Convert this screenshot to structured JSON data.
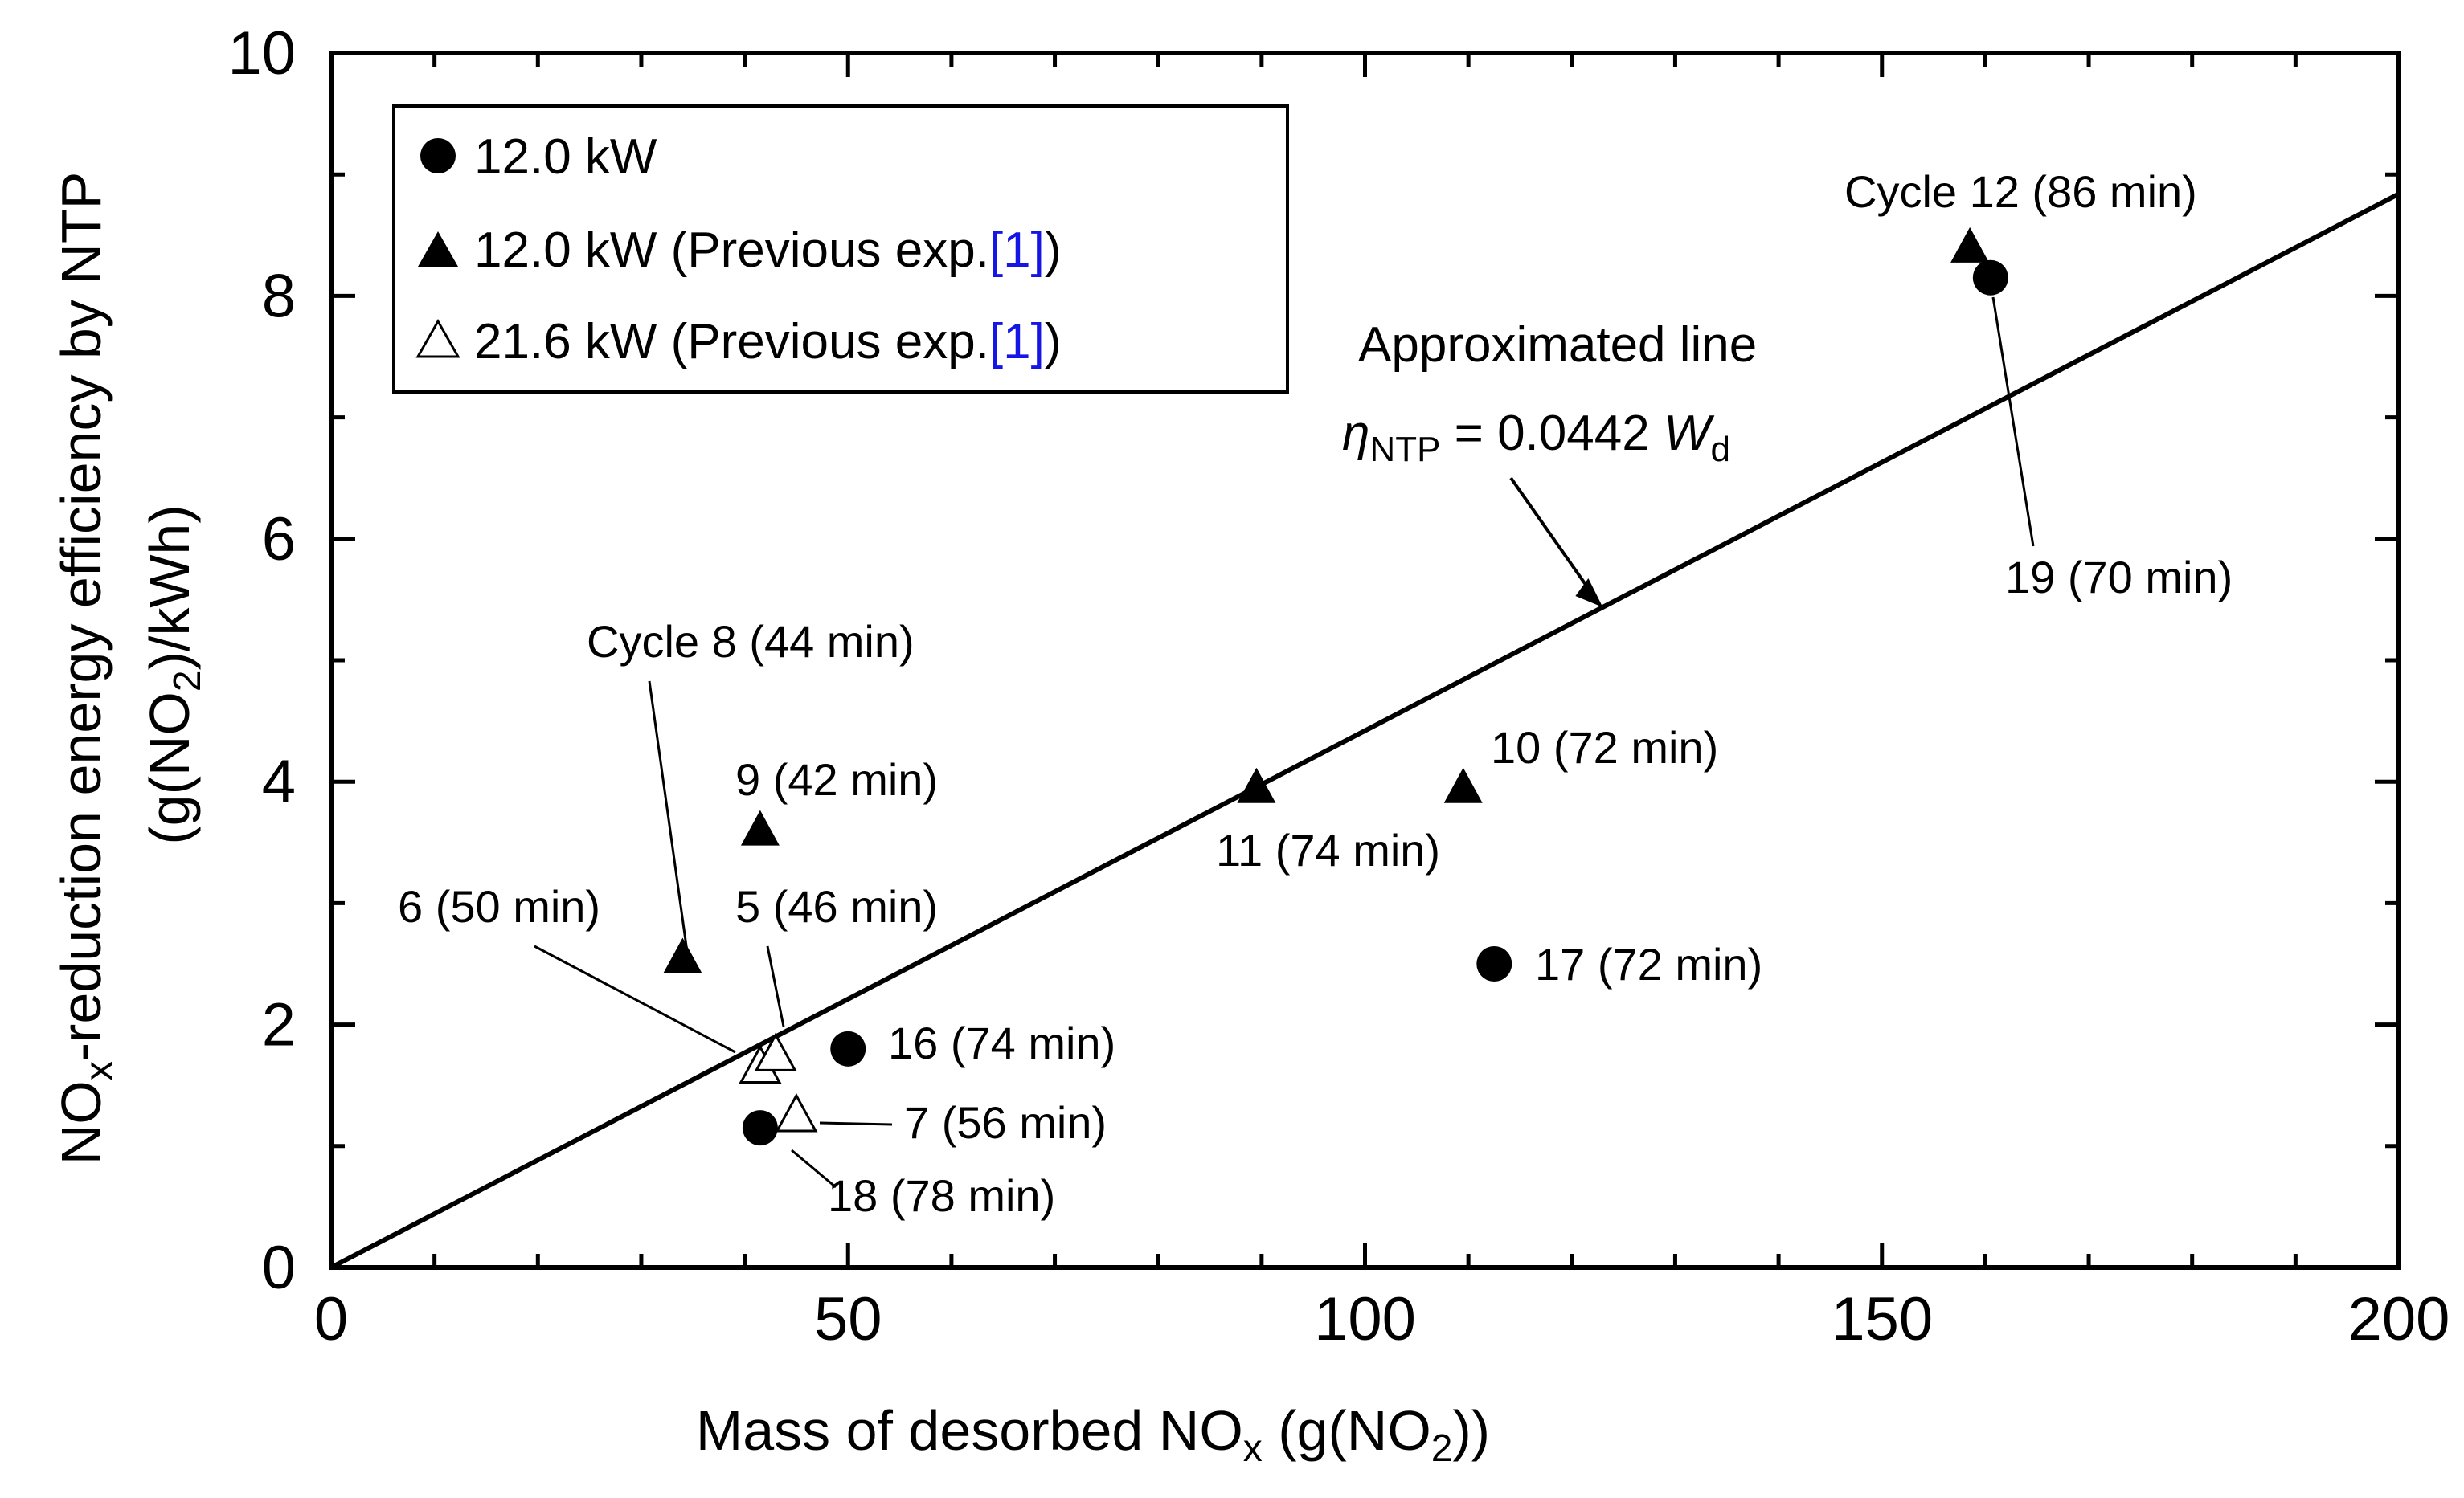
{
  "chart_data": {
    "type": "scatter",
    "xlim": [
      0,
      200
    ],
    "ylim": [
      0,
      10
    ],
    "x_major_ticks": [
      0,
      50,
      100,
      150,
      200
    ],
    "x_minor_step": 10,
    "y_major_ticks": [
      0,
      2,
      4,
      6,
      8,
      10
    ],
    "y_minor_step": 1,
    "x_tick_labels": [
      "0",
      "50",
      "100",
      "150",
      "200"
    ],
    "y_tick_labels": [
      "0",
      "2",
      "4",
      "6",
      "8",
      "10"
    ],
    "xlabel": {
      "main": "Mass of desorbed NO",
      "sub1": "x",
      "mid": " (g(NO",
      "sub2": "2",
      "end": "))"
    },
    "ylabel": {
      "line1": {
        "main": "NO",
        "sub": "x",
        "rest": "-reduction energy efficiency by NTP"
      },
      "line2": {
        "main": "(g(NO",
        "sub": "2",
        "rest": ")/kWh)"
      }
    },
    "legend": {
      "position": "top-left",
      "entries": [
        {
          "marker": "filled-circle",
          "label": "12.0 kW",
          "ref": ""
        },
        {
          "marker": "filled-triangle",
          "label": "12.0 kW (Previous exp.",
          "ref": "[1]",
          "suffix": ")"
        },
        {
          "marker": "open-triangle",
          "label": "21.6 kW (Previous exp.",
          "ref": "[1]",
          "suffix": ")"
        }
      ]
    },
    "series": [
      {
        "name": "12.0 kW",
        "marker": "filled-circle",
        "points": [
          {
            "x": 160.5,
            "y": 8.15,
            "cycle": 19
          },
          {
            "x": 50.0,
            "y": 1.8,
            "cycle": 16
          },
          {
            "x": 41.5,
            "y": 1.15,
            "cycle": 18
          },
          {
            "x": 112.5,
            "y": 2.5,
            "cycle": 17
          }
        ]
      },
      {
        "name": "12.0 kW (Previous exp.[1])",
        "marker": "filled-triangle",
        "points": [
          {
            "x": 158.5,
            "y": 8.4,
            "cycle": 12
          },
          {
            "x": 34.0,
            "y": 2.55,
            "cycle": 8
          },
          {
            "x": 41.5,
            "y": 3.6,
            "cycle": 9
          },
          {
            "x": 89.5,
            "y": 3.95,
            "cycle": 11
          },
          {
            "x": 109.5,
            "y": 3.95,
            "cycle": 10
          }
        ]
      },
      {
        "name": "21.6 kW (Previous exp.[1])",
        "marker": "open-triangle",
        "points": [
          {
            "x": 41.5,
            "y": 1.65,
            "cycle": 6
          },
          {
            "x": 43.0,
            "y": 1.75,
            "cycle": 5
          },
          {
            "x": 45.0,
            "y": 1.25,
            "cycle": 7
          }
        ]
      }
    ],
    "fit_line": {
      "slope": 0.0442,
      "intercept": 0,
      "x_range": [
        0,
        200
      ]
    },
    "fit_label": {
      "title": "Approximated line",
      "eta": "η",
      "eta_sub": "NTP",
      "eq": " = 0.0442 ",
      "w": "W",
      "w_sub": "d"
    },
    "annotations": [
      {
        "text": "Cycle 12 (86 min)",
        "target": [
          158.5,
          8.4
        ]
      },
      {
        "text": "19 (70 min)",
        "target": [
          160.5,
          8.15
        ]
      },
      {
        "text": "Cycle 8 (44 min)",
        "target": [
          34.0,
          2.55
        ]
      },
      {
        "text": "9 (42 min)",
        "target": [
          41.5,
          3.6
        ]
      },
      {
        "text": "10 (72 min)",
        "target": [
          109.5,
          3.95
        ]
      },
      {
        "text": "11 (74 min)",
        "target": [
          89.5,
          3.95
        ]
      },
      {
        "text": "6 (50 min)",
        "target": [
          41.5,
          1.65
        ]
      },
      {
        "text": "5 (46 min)",
        "target": [
          43.0,
          1.75
        ]
      },
      {
        "text": "16 (74 min)",
        "target": [
          50.0,
          1.8
        ]
      },
      {
        "text": "17 (72 min)",
        "target": [
          112.5,
          2.5
        ]
      },
      {
        "text": "7 (56 min)",
        "target": [
          45.0,
          1.25
        ]
      },
      {
        "text": "18 (78 min)",
        "target": [
          41.5,
          1.15
        ]
      }
    ]
  }
}
